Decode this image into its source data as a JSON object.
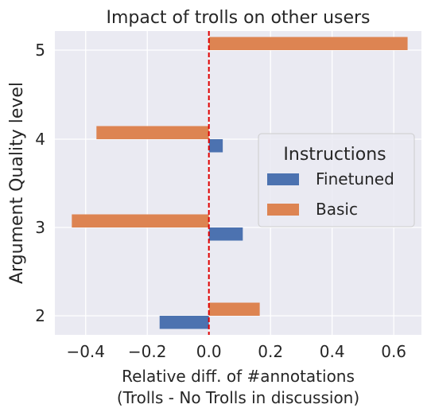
{
  "chart_data": {
    "type": "bar",
    "orientation": "horizontal",
    "title": "Impact of trolls on other users",
    "xlabel": "Relative diff. of #annotations\n(Trolls - No Trolls in discussion)",
    "ylabel": "Argument Quality level",
    "categories": [
      "2",
      "3",
      "4",
      "5"
    ],
    "series": [
      {
        "name": "Finetuned",
        "values": [
          -0.16,
          0.11,
          0.045,
          null
        ]
      },
      {
        "name": "Basic",
        "values": [
          0.165,
          -0.445,
          -0.365,
          0.645
        ]
      }
    ],
    "xlim": [
      -0.5,
      0.69
    ],
    "xticks": [
      -0.4,
      -0.2,
      0.0,
      0.2,
      0.4,
      0.6
    ],
    "xtick_labels": [
      "−0.4",
      "−0.2",
      "0.0",
      "0.2",
      "0.4",
      "0.6"
    ],
    "reference_line": {
      "x": 0.0,
      "color": "#e00000",
      "style": "dashed"
    },
    "legend": {
      "title": "Instructions",
      "position": "right",
      "entries": [
        "Finetuned",
        "Basic"
      ]
    },
    "grid": true,
    "colors": {
      "background": "#eaeaf2",
      "grid": "#ffffff",
      "Finetuned": "#4c72b0",
      "Basic": "#dd8452",
      "text": "#262626"
    }
  }
}
